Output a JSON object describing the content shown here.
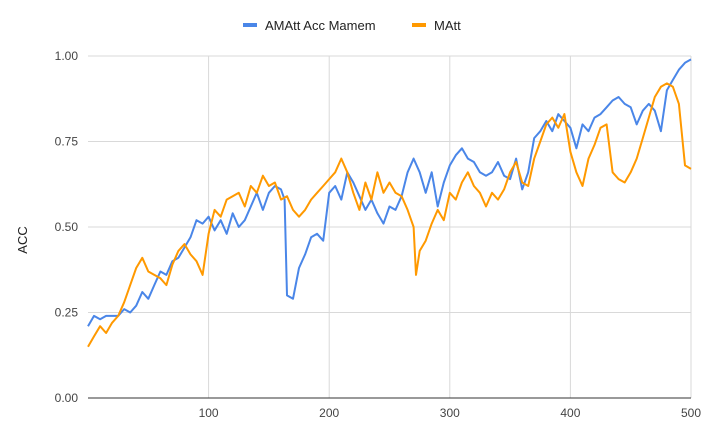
{
  "chart_data": {
    "type": "line",
    "title": "",
    "xlabel": "",
    "ylabel": "ACC",
    "xlim": [
      0,
      500
    ],
    "ylim": [
      0,
      1
    ],
    "x_ticks": [
      100,
      200,
      300,
      400,
      500
    ],
    "y_ticks": [
      0,
      0.25,
      0.5,
      0.75,
      1
    ],
    "y_tick_labels": [
      "0.00",
      "0.25",
      "0.50",
      "0.75",
      "1.00"
    ],
    "grid": true,
    "legend_position": "top",
    "series": [
      {
        "name": "AMAtt Acc  Mamem",
        "color": "#4a86e8",
        "points": [
          [
            0,
            0.21
          ],
          [
            5,
            0.24
          ],
          [
            10,
            0.23
          ],
          [
            15,
            0.24
          ],
          [
            20,
            0.24
          ],
          [
            25,
            0.24
          ],
          [
            30,
            0.26
          ],
          [
            35,
            0.25
          ],
          [
            40,
            0.27
          ],
          [
            45,
            0.31
          ],
          [
            50,
            0.29
          ],
          [
            55,
            0.33
          ],
          [
            60,
            0.37
          ],
          [
            65,
            0.36
          ],
          [
            70,
            0.4
          ],
          [
            75,
            0.41
          ],
          [
            80,
            0.44
          ],
          [
            85,
            0.47
          ],
          [
            90,
            0.52
          ],
          [
            95,
            0.51
          ],
          [
            100,
            0.53
          ],
          [
            105,
            0.49
          ],
          [
            110,
            0.52
          ],
          [
            115,
            0.48
          ],
          [
            120,
            0.54
          ],
          [
            125,
            0.5
          ],
          [
            130,
            0.52
          ],
          [
            135,
            0.56
          ],
          [
            140,
            0.6
          ],
          [
            145,
            0.55
          ],
          [
            150,
            0.6
          ],
          [
            155,
            0.62
          ],
          [
            160,
            0.61
          ],
          [
            163,
            0.58
          ],
          [
            165,
            0.3
          ],
          [
            170,
            0.29
          ],
          [
            175,
            0.38
          ],
          [
            180,
            0.42
          ],
          [
            185,
            0.47
          ],
          [
            190,
            0.48
          ],
          [
            195,
            0.46
          ],
          [
            200,
            0.6
          ],
          [
            205,
            0.62
          ],
          [
            210,
            0.58
          ],
          [
            215,
            0.66
          ],
          [
            220,
            0.63
          ],
          [
            225,
            0.59
          ],
          [
            230,
            0.55
          ],
          [
            235,
            0.58
          ],
          [
            240,
            0.54
          ],
          [
            245,
            0.51
          ],
          [
            250,
            0.56
          ],
          [
            255,
            0.55
          ],
          [
            260,
            0.59
          ],
          [
            265,
            0.66
          ],
          [
            270,
            0.7
          ],
          [
            275,
            0.66
          ],
          [
            280,
            0.6
          ],
          [
            285,
            0.66
          ],
          [
            290,
            0.56
          ],
          [
            295,
            0.63
          ],
          [
            300,
            0.68
          ],
          [
            305,
            0.71
          ],
          [
            310,
            0.73
          ],
          [
            315,
            0.7
          ],
          [
            320,
            0.69
          ],
          [
            325,
            0.66
          ],
          [
            330,
            0.65
          ],
          [
            335,
            0.66
          ],
          [
            340,
            0.69
          ],
          [
            345,
            0.65
          ],
          [
            350,
            0.64
          ],
          [
            355,
            0.7
          ],
          [
            360,
            0.61
          ],
          [
            365,
            0.66
          ],
          [
            370,
            0.76
          ],
          [
            375,
            0.78
          ],
          [
            380,
            0.81
          ],
          [
            385,
            0.78
          ],
          [
            390,
            0.83
          ],
          [
            395,
            0.81
          ],
          [
            400,
            0.79
          ],
          [
            405,
            0.73
          ],
          [
            410,
            0.8
          ],
          [
            415,
            0.78
          ],
          [
            420,
            0.82
          ],
          [
            425,
            0.83
          ],
          [
            430,
            0.85
          ],
          [
            435,
            0.87
          ],
          [
            440,
            0.88
          ],
          [
            445,
            0.86
          ],
          [
            450,
            0.85
          ],
          [
            455,
            0.8
          ],
          [
            460,
            0.84
          ],
          [
            465,
            0.86
          ],
          [
            470,
            0.84
          ],
          [
            475,
            0.78
          ],
          [
            480,
            0.9
          ],
          [
            485,
            0.93
          ],
          [
            490,
            0.96
          ],
          [
            495,
            0.98
          ],
          [
            500,
            0.99
          ]
        ]
      },
      {
        "name": "MAtt",
        "color": "#ff9900",
        "points": [
          [
            0,
            0.15
          ],
          [
            5,
            0.18
          ],
          [
            10,
            0.21
          ],
          [
            15,
            0.19
          ],
          [
            20,
            0.22
          ],
          [
            25,
            0.24
          ],
          [
            30,
            0.28
          ],
          [
            35,
            0.33
          ],
          [
            40,
            0.38
          ],
          [
            45,
            0.41
          ],
          [
            50,
            0.37
          ],
          [
            55,
            0.36
          ],
          [
            60,
            0.35
          ],
          [
            65,
            0.33
          ],
          [
            70,
            0.39
          ],
          [
            75,
            0.43
          ],
          [
            80,
            0.45
          ],
          [
            85,
            0.42
          ],
          [
            90,
            0.4
          ],
          [
            95,
            0.36
          ],
          [
            100,
            0.48
          ],
          [
            105,
            0.55
          ],
          [
            110,
            0.53
          ],
          [
            115,
            0.58
          ],
          [
            120,
            0.59
          ],
          [
            125,
            0.6
          ],
          [
            130,
            0.56
          ],
          [
            135,
            0.62
          ],
          [
            140,
            0.6
          ],
          [
            145,
            0.65
          ],
          [
            150,
            0.62
          ],
          [
            155,
            0.63
          ],
          [
            160,
            0.58
          ],
          [
            165,
            0.59
          ],
          [
            170,
            0.55
          ],
          [
            175,
            0.53
          ],
          [
            180,
            0.55
          ],
          [
            185,
            0.58
          ],
          [
            190,
            0.6
          ],
          [
            195,
            0.62
          ],
          [
            200,
            0.64
          ],
          [
            205,
            0.66
          ],
          [
            210,
            0.7
          ],
          [
            215,
            0.66
          ],
          [
            220,
            0.6
          ],
          [
            225,
            0.55
          ],
          [
            230,
            0.63
          ],
          [
            235,
            0.58
          ],
          [
            240,
            0.66
          ],
          [
            245,
            0.6
          ],
          [
            250,
            0.63
          ],
          [
            255,
            0.6
          ],
          [
            260,
            0.59
          ],
          [
            265,
            0.55
          ],
          [
            270,
            0.5
          ],
          [
            272,
            0.36
          ],
          [
            275,
            0.43
          ],
          [
            280,
            0.46
          ],
          [
            285,
            0.51
          ],
          [
            290,
            0.55
          ],
          [
            295,
            0.52
          ],
          [
            300,
            0.6
          ],
          [
            305,
            0.58
          ],
          [
            310,
            0.63
          ],
          [
            315,
            0.66
          ],
          [
            320,
            0.62
          ],
          [
            325,
            0.6
          ],
          [
            330,
            0.56
          ],
          [
            335,
            0.6
          ],
          [
            340,
            0.58
          ],
          [
            345,
            0.61
          ],
          [
            350,
            0.66
          ],
          [
            355,
            0.69
          ],
          [
            360,
            0.63
          ],
          [
            365,
            0.62
          ],
          [
            370,
            0.7
          ],
          [
            375,
            0.75
          ],
          [
            380,
            0.8
          ],
          [
            385,
            0.82
          ],
          [
            390,
            0.79
          ],
          [
            395,
            0.83
          ],
          [
            400,
            0.72
          ],
          [
            405,
            0.66
          ],
          [
            410,
            0.62
          ],
          [
            415,
            0.7
          ],
          [
            420,
            0.74
          ],
          [
            425,
            0.79
          ],
          [
            430,
            0.8
          ],
          [
            435,
            0.66
          ],
          [
            440,
            0.64
          ],
          [
            445,
            0.63
          ],
          [
            450,
            0.66
          ],
          [
            455,
            0.7
          ],
          [
            460,
            0.76
          ],
          [
            465,
            0.82
          ],
          [
            470,
            0.88
          ],
          [
            475,
            0.91
          ],
          [
            480,
            0.92
          ],
          [
            485,
            0.91
          ],
          [
            490,
            0.86
          ],
          [
            495,
            0.68
          ],
          [
            500,
            0.67
          ]
        ]
      }
    ]
  }
}
